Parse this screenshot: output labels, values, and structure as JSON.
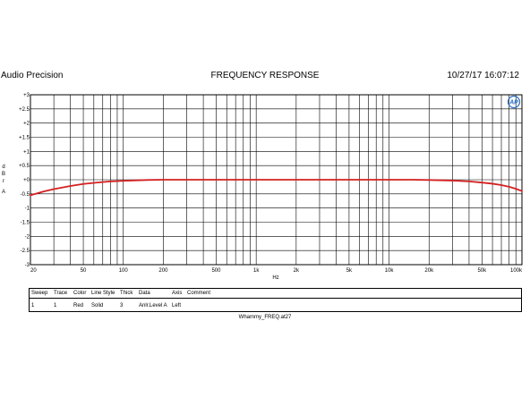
{
  "header": {
    "app_name": "Audio Precision",
    "title": "FREQUENCY RESPONSE",
    "timestamp": "10/27/17 16:07:12"
  },
  "colors": {
    "trace": "#d42020",
    "grid": "#000000",
    "background": "#ffffff",
    "logo": "#2a6fc9"
  },
  "icons": {
    "logo": "audio-precision-ap-logo-icon"
  },
  "chart_data": {
    "type": "line",
    "title": "FREQUENCY RESPONSE",
    "xlabel": "Hz",
    "ylabel": "dBr A",
    "x_scale": "log",
    "xlim": [
      20,
      100000
    ],
    "ylim": [
      -3,
      3
    ],
    "grid": true,
    "x_ticks": [
      {
        "v": 20,
        "label": "20"
      },
      {
        "v": 50,
        "label": "50"
      },
      {
        "v": 100,
        "label": "100"
      },
      {
        "v": 200,
        "label": "200"
      },
      {
        "v": 500,
        "label": "500"
      },
      {
        "v": 1000,
        "label": "1k"
      },
      {
        "v": 2000,
        "label": "2k"
      },
      {
        "v": 5000,
        "label": "5k"
      },
      {
        "v": 10000,
        "label": "10k"
      },
      {
        "v": 20000,
        "label": "20k"
      },
      {
        "v": 50000,
        "label": "50k"
      },
      {
        "v": 100000,
        "label": "100k"
      }
    ],
    "y_ticks": [
      {
        "v": 3,
        "label": "+3"
      },
      {
        "v": 2.5,
        "label": "+2.5"
      },
      {
        "v": 2,
        "label": "+2"
      },
      {
        "v": 1.5,
        "label": "+1.5"
      },
      {
        "v": 1,
        "label": "+1"
      },
      {
        "v": 0.5,
        "label": "+0.5"
      },
      {
        "v": 0,
        "label": "+0"
      },
      {
        "v": -0.5,
        "label": "-0.5"
      },
      {
        "v": -1,
        "label": "-1"
      },
      {
        "v": -1.5,
        "label": "-1.5"
      },
      {
        "v": -2,
        "label": "-2"
      },
      {
        "v": -2.5,
        "label": "-2.5"
      },
      {
        "v": -3,
        "label": "-3"
      }
    ],
    "series": [
      {
        "color": "#d42020",
        "x": [
          20,
          25,
          30,
          40,
          50,
          60,
          80,
          100,
          150,
          200,
          300,
          500,
          700,
          1000,
          2000,
          5000,
          10000,
          15000,
          20000,
          30000,
          40000,
          50000,
          60000,
          70000,
          80000,
          90000,
          100000
        ],
        "y": [
          -0.55,
          -0.42,
          -0.33,
          -0.22,
          -0.15,
          -0.11,
          -0.06,
          -0.04,
          -0.01,
          0.0,
          0.0,
          0.0,
          0.0,
          0.0,
          0.0,
          0.0,
          0.0,
          0.0,
          -0.01,
          -0.03,
          -0.06,
          -0.1,
          -0.14,
          -0.19,
          -0.25,
          -0.32,
          -0.4
        ]
      }
    ]
  },
  "legend_table": {
    "headers": [
      "Sweep",
      "Trace",
      "Color",
      "Line Style",
      "Thick",
      "Data",
      "Axis",
      "Comment"
    ],
    "rows": [
      [
        "1",
        "1",
        "Red",
        "Solid",
        "3",
        "Anlr.Level A",
        "Left",
        ""
      ]
    ]
  },
  "filename": "Whammy_FREQ.at27"
}
